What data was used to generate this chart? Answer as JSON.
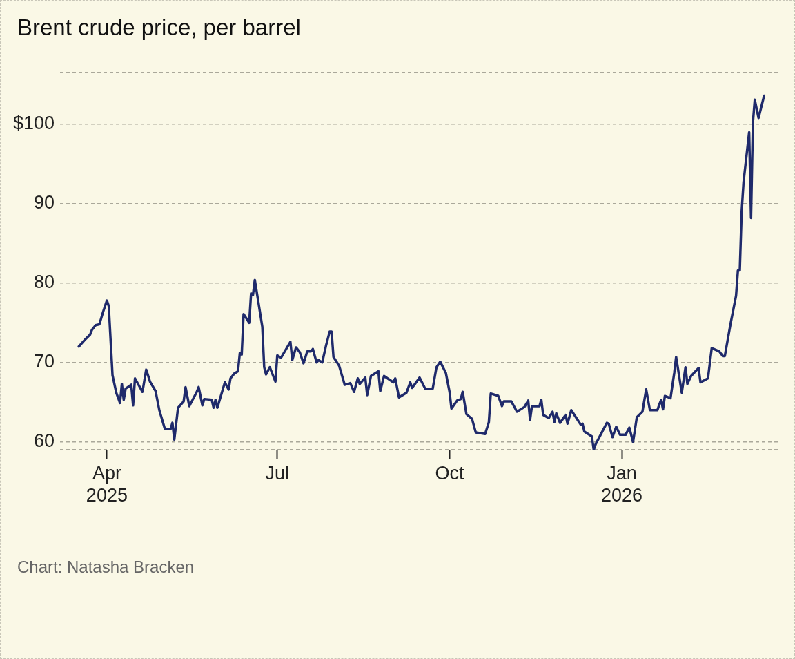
{
  "chart_data": {
    "type": "line",
    "title": "Brent crude price, per barrel",
    "annotations": [
      "Chart: Natasha Bracken"
    ],
    "x": [
      "2025-03-17",
      "2025-03-20",
      "2025-03-23",
      "2025-03-24",
      "2025-03-26",
      "2025-03-28",
      "2025-03-30",
      "2025-04-01",
      "2025-04-02",
      "2025-04-04",
      "2025-04-06",
      "2025-04-08",
      "2025-04-09",
      "2025-04-10",
      "2025-04-11",
      "2025-04-14",
      "2025-04-15",
      "2025-04-16",
      "2025-04-20",
      "2025-04-22",
      "2025-04-24",
      "2025-04-27",
      "2025-04-29",
      "2025-05-02",
      "2025-05-05",
      "2025-05-06",
      "2025-05-07",
      "2025-05-09",
      "2025-05-12",
      "2025-05-13",
      "2025-05-15",
      "2025-05-19",
      "2025-05-20",
      "2025-05-22",
      "2025-05-23",
      "2025-05-27",
      "2025-05-28",
      "2025-05-29",
      "2025-05-30",
      "2025-06-03",
      "2025-06-05",
      "2025-06-06",
      "2025-06-08",
      "2025-06-10",
      "2025-06-11",
      "2025-06-12",
      "2025-06-13",
      "2025-06-16",
      "2025-06-17",
      "2025-06-18",
      "2025-06-19",
      "2025-06-23",
      "2025-06-24",
      "2025-06-25",
      "2025-06-27",
      "2025-06-30",
      "2025-07-01",
      "2025-07-03",
      "2025-07-08",
      "2025-07-09",
      "2025-07-11",
      "2025-07-13",
      "2025-07-15",
      "2025-07-17",
      "2025-07-19",
      "2025-07-20",
      "2025-07-22",
      "2025-07-23",
      "2025-07-25",
      "2025-07-27",
      "2025-07-29",
      "2025-07-30",
      "2025-07-31",
      "2025-08-03",
      "2025-08-06",
      "2025-08-09",
      "2025-08-11",
      "2025-08-13",
      "2025-08-14",
      "2025-08-17",
      "2025-08-18",
      "2025-08-20",
      "2025-08-24",
      "2025-08-25",
      "2025-08-27",
      "2025-09-01",
      "2025-09-02",
      "2025-09-04",
      "2025-09-08",
      "2025-09-10",
      "2025-09-11",
      "2025-09-15",
      "2025-09-18",
      "2025-09-22",
      "2025-09-24",
      "2025-09-26",
      "2025-09-29",
      "2025-10-01",
      "2025-10-02",
      "2025-10-05",
      "2025-10-07",
      "2025-10-08",
      "2025-10-10",
      "2025-10-13",
      "2025-10-15",
      "2025-10-20",
      "2025-10-22",
      "2025-10-23",
      "2025-10-27",
      "2025-10-29",
      "2025-10-30",
      "2025-11-03",
      "2025-11-06",
      "2025-11-10",
      "2025-11-12",
      "2025-11-13",
      "2025-11-14",
      "2025-11-18",
      "2025-11-19",
      "2025-11-20",
      "2025-11-23",
      "2025-11-25",
      "2025-11-26",
      "2025-11-27",
      "2025-11-29",
      "2025-12-02",
      "2025-12-03",
      "2025-12-05",
      "2025-12-10",
      "2025-12-11",
      "2025-12-12",
      "2025-12-16",
      "2025-12-17",
      "2025-12-18",
      "2025-12-24",
      "2025-12-25",
      "2025-12-27",
      "2025-12-29",
      "2025-12-31",
      "2026-01-03",
      "2026-01-05",
      "2026-01-07",
      "2026-01-09",
      "2026-01-12",
      "2026-01-14",
      "2026-01-16",
      "2026-01-20",
      "2026-01-21",
      "2026-01-22",
      "2026-01-23",
      "2026-01-24",
      "2026-01-27",
      "2026-01-29",
      "2026-01-30",
      "2026-02-02",
      "2026-02-04",
      "2026-02-05",
      "2026-02-07",
      "2026-02-11",
      "2026-02-12",
      "2026-02-16",
      "2026-02-18",
      "2026-02-19",
      "2026-02-22",
      "2026-02-24",
      "2026-02-25",
      "2026-02-28",
      "2026-03-03",
      "2026-03-04",
      "2026-03-05",
      "2026-03-06",
      "2026-03-07",
      "2026-03-10",
      "2026-03-11",
      "2026-03-12",
      "2026-03-13",
      "2026-03-15",
      "2026-03-18"
    ],
    "series": [
      {
        "color": "#1f2a6b",
        "values": [
          72.0,
          72.8,
          73.5,
          74.1,
          74.7,
          74.8,
          76.4,
          77.8,
          77.1,
          68.4,
          66.2,
          64.9,
          67.3,
          65.3,
          66.7,
          67.2,
          64.6,
          68.0,
          66.3,
          69.1,
          67.6,
          66.4,
          64.0,
          61.6,
          61.6,
          62.4,
          60.3,
          64.3,
          65.1,
          66.9,
          64.5,
          66.3,
          66.9,
          64.6,
          65.4,
          65.3,
          64.3,
          65.3,
          64.3,
          67.5,
          66.6,
          68.0,
          68.6,
          68.9,
          71.2,
          71.0,
          76.1,
          75.0,
          78.7,
          78.5,
          80.4,
          74.5,
          69.4,
          68.5,
          69.4,
          67.6,
          70.9,
          70.6,
          72.6,
          70.3,
          71.9,
          71.3,
          69.9,
          71.4,
          71.4,
          71.7,
          70.0,
          70.3,
          70.0,
          72.1,
          73.9,
          73.9,
          70.7,
          69.6,
          67.2,
          67.4,
          66.3,
          68.0,
          67.3,
          68.1,
          65.9,
          68.3,
          68.9,
          66.4,
          68.3,
          67.5,
          68.0,
          65.6,
          66.2,
          67.5,
          66.8,
          68.1,
          66.7,
          66.7,
          69.4,
          70.1,
          68.7,
          66.3,
          64.2,
          65.2,
          65.4,
          66.3,
          63.5,
          62.9,
          61.2,
          61.0,
          62.5,
          66.1,
          65.8,
          64.5,
          65.1,
          65.1,
          63.8,
          64.4,
          65.2,
          62.8,
          64.5,
          64.5,
          65.3,
          63.4,
          63.0,
          63.8,
          62.5,
          63.6,
          62.4,
          63.4,
          62.3,
          64.0,
          62.2,
          62.3,
          61.3,
          60.7,
          59.0,
          59.7,
          62.4,
          62.3,
          60.6,
          61.9,
          60.9,
          60.9,
          61.8,
          60.0,
          63.1,
          63.8,
          66.6,
          64.0,
          64.0,
          64.7,
          65.3,
          64.1,
          65.8,
          65.5,
          68.7,
          70.7,
          66.2,
          69.4,
          67.3,
          68.3,
          69.3,
          67.5,
          68.0,
          71.8,
          71.7,
          71.4,
          70.8,
          70.8,
          74.8,
          78.4,
          81.6,
          81.6,
          89.0,
          92.7,
          99.0,
          88.2,
          100.2,
          103.1,
          100.8,
          103.6
        ]
      }
    ],
    "xlim": [
      "2025-03-07",
      "2026-03-26"
    ],
    "xticks": [
      {
        "value": "2025-04-01",
        "label": "Apr 2025"
      },
      {
        "value": "2025-07-01",
        "label": "Jul"
      },
      {
        "value": "2025-10-01",
        "label": "Oct"
      },
      {
        "value": "2026-01-01",
        "label": "Jan 2026"
      }
    ],
    "ylim": [
      59,
      106.5
    ],
    "yticks": [
      {
        "value": 59,
        "label": null
      },
      60,
      70,
      80,
      90,
      {
        "value": 100,
        "label": "$100"
      },
      {
        "value": 106.5,
        "label": null
      }
    ],
    "grid": "y",
    "legend": false,
    "marker": "none",
    "line_style": "solid"
  }
}
